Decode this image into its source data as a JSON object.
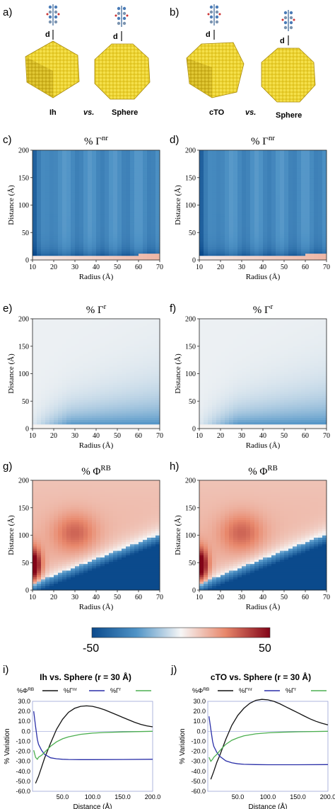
{
  "panel_labels": [
    "a)",
    "b)",
    "c)",
    "d)",
    "e)",
    "f)",
    "g)",
    "h)",
    "i)",
    "j)"
  ],
  "nanoparticles": {
    "a": {
      "left": "Ih",
      "vs": "vs.",
      "right": "Sphere"
    },
    "b": {
      "left": "cTO",
      "vs": "vs.",
      "right": "Sphere"
    },
    "distance_label": "d"
  },
  "colors": {
    "neg": "#0b4a8c",
    "mid": "#f6f6f6",
    "pos": "#820418",
    "black": "#111111",
    "blue": "#2a2fa8",
    "green": "#4caf50"
  },
  "chart_data": [
    {
      "type": "heatmap",
      "panel": "c",
      "title": "% Γ^nr",
      "xlabel": "Radius (Å)",
      "ylabel": "Distance (Å)",
      "xlim": [
        10,
        70
      ],
      "ylim": [
        0,
        200
      ],
      "xticks": [
        10,
        20,
        30,
        40,
        50,
        60,
        70
      ],
      "yticks": [
        0,
        50,
        100,
        150,
        200
      ],
      "colorscale": [
        -50,
        50
      ]
    },
    {
      "type": "heatmap",
      "panel": "d",
      "title": "% Γ^nr",
      "xlabel": "Radius (Å)",
      "ylabel": "Distance (Å)",
      "xlim": [
        10,
        70
      ],
      "ylim": [
        0,
        200
      ],
      "xticks": [
        10,
        20,
        30,
        40,
        50,
        60,
        70
      ],
      "yticks": [
        0,
        50,
        100,
        150,
        200
      ],
      "colorscale": [
        -50,
        50
      ]
    },
    {
      "type": "heatmap",
      "panel": "e",
      "title": "% Γ^r",
      "xlabel": "Radius (Å)",
      "ylabel": "Distance (Å)",
      "xlim": [
        10,
        70
      ],
      "ylim": [
        0,
        200
      ],
      "xticks": [
        10,
        20,
        30,
        40,
        50,
        60,
        70
      ],
      "yticks": [
        0,
        50,
        100,
        150,
        200
      ],
      "colorscale": [
        -50,
        50
      ]
    },
    {
      "type": "heatmap",
      "panel": "f",
      "title": "% Γ^r",
      "xlabel": "Radius (Å)",
      "ylabel": "Distance (Å)",
      "xlim": [
        10,
        70
      ],
      "ylim": [
        0,
        200
      ],
      "xticks": [
        10,
        20,
        30,
        40,
        50,
        60,
        70
      ],
      "yticks": [
        0,
        50,
        100,
        150,
        200
      ],
      "colorscale": [
        -50,
        50
      ]
    },
    {
      "type": "heatmap",
      "panel": "g",
      "title": "% Φ^RB",
      "xlabel": "Radius (Å)",
      "ylabel": "Distance (Å)",
      "xlim": [
        10,
        70
      ],
      "ylim": [
        0,
        200
      ],
      "xticks": [
        10,
        20,
        30,
        40,
        50,
        60,
        70
      ],
      "yticks": [
        0,
        50,
        100,
        150,
        200
      ],
      "colorscale": [
        -50,
        50
      ]
    },
    {
      "type": "heatmap",
      "panel": "h",
      "title": "% Φ^RB",
      "xlabel": "Radius (Å)",
      "ylabel": "Distance (Å)",
      "xlim": [
        10,
        70
      ],
      "ylim": [
        0,
        200
      ],
      "xticks": [
        10,
        20,
        30,
        40,
        50,
        60,
        70
      ],
      "yticks": [
        0,
        50,
        100,
        150,
        200
      ],
      "colorscale": [
        -50,
        50
      ]
    },
    {
      "type": "line",
      "panel": "i",
      "title": "Ih vs. Sphere (r = 30 Å)",
      "xlabel": "Distance (Å)",
      "ylabel": "% Variation",
      "xlim": [
        0,
        200
      ],
      "ylim": [
        -60,
        30
      ],
      "xticks": [
        "50.0",
        "100.0",
        "150.0",
        "200.0"
      ],
      "yticks": [
        "30.0",
        "20.0",
        "10.0",
        "0.0",
        "-10.0",
        "-20.0",
        "-30.0",
        "-40.0",
        "-50.0",
        "-60.0"
      ],
      "legend_position": "top",
      "series": [
        {
          "name": "%Φ^RB",
          "color": "#111111",
          "x": [
            5,
            10,
            15,
            20,
            30,
            40,
            50,
            60,
            70,
            80,
            90,
            100,
            110,
            120,
            130,
            140,
            150,
            160,
            170,
            180,
            190,
            200
          ],
          "y": [
            -52,
            -45,
            -36,
            -27,
            -12,
            2,
            12,
            19,
            23,
            25,
            25.5,
            25,
            23.5,
            21.5,
            19,
            16.5,
            14,
            11.5,
            9,
            7,
            5.5,
            4.5
          ]
        },
        {
          "name": "%Γ^nr",
          "color": "#2a2fa8",
          "x": [
            2,
            5,
            8,
            10,
            15,
            20,
            30,
            40,
            50,
            60,
            80,
            100,
            150,
            200
          ],
          "y": [
            20,
            5,
            -8,
            -13,
            -19,
            -23,
            -26.5,
            -27.5,
            -28,
            -28.2,
            -28.3,
            -28.3,
            -28.2,
            -28
          ],
          "note": ""
        },
        {
          "name": "%Γ^r",
          "color": "#4caf50",
          "x": [
            2,
            5,
            8,
            10,
            15,
            20,
            25,
            30,
            40,
            50,
            60,
            80,
            100,
            120,
            150,
            200
          ],
          "y": [
            -19,
            -26,
            -28,
            -26,
            -24,
            -21,
            -18,
            -15,
            -10.5,
            -7.5,
            -5.5,
            -3,
            -1.8,
            -1.2,
            -0.6,
            0
          ]
        }
      ]
    },
    {
      "type": "line",
      "panel": "j",
      "title": "cTO vs. Sphere (r = 30 Å)",
      "xlabel": "Distance (Å)",
      "ylabel": "% Variation",
      "xlim": [
        0,
        200
      ],
      "ylim": [
        -60,
        30
      ],
      "xticks": [
        "50.0",
        "100.0",
        "150.0",
        "200.0"
      ],
      "yticks": [
        "30.0",
        "20.0",
        "10.0",
        "0.0",
        "-10.0",
        "-20.0",
        "-30.0",
        "-40.0",
        "-50.0",
        "-60.0"
      ],
      "legend_position": "top",
      "series": [
        {
          "name": "%Φ^RB",
          "color": "#111111",
          "x": [
            5,
            10,
            15,
            20,
            30,
            40,
            50,
            60,
            70,
            80,
            90,
            100,
            110,
            120,
            130,
            140,
            150,
            160,
            170,
            180,
            190,
            200
          ],
          "y": [
            -48,
            -40,
            -31,
            -24,
            -8,
            6,
            16,
            23,
            28,
            31,
            32,
            31.5,
            30,
            27.5,
            24.5,
            21.5,
            18.5,
            15.5,
            12.5,
            10,
            8,
            6.5
          ]
        },
        {
          "name": "%Γ^nr",
          "color": "#2a2fa8",
          "x": [
            2,
            5,
            8,
            10,
            15,
            20,
            30,
            40,
            50,
            60,
            80,
            100,
            150,
            200
          ],
          "y": [
            15,
            2,
            -10,
            -15,
            -21,
            -25,
            -29.5,
            -31.5,
            -32.5,
            -33,
            -33.3,
            -33.4,
            -33.4,
            -33.3
          ]
        },
        {
          "name": "%Γ^r",
          "color": "#4caf50",
          "x": [
            2,
            5,
            8,
            10,
            15,
            20,
            25,
            30,
            40,
            50,
            60,
            80,
            100,
            120,
            150,
            200
          ],
          "y": [
            -26,
            -30,
            -28,
            -26,
            -23,
            -19.5,
            -16,
            -13,
            -9,
            -6.5,
            -4.5,
            -2.5,
            -1.5,
            -1,
            -0.5,
            0
          ]
        }
      ]
    }
  ],
  "colorbar": {
    "min_label": "-50",
    "max_label": "50"
  }
}
